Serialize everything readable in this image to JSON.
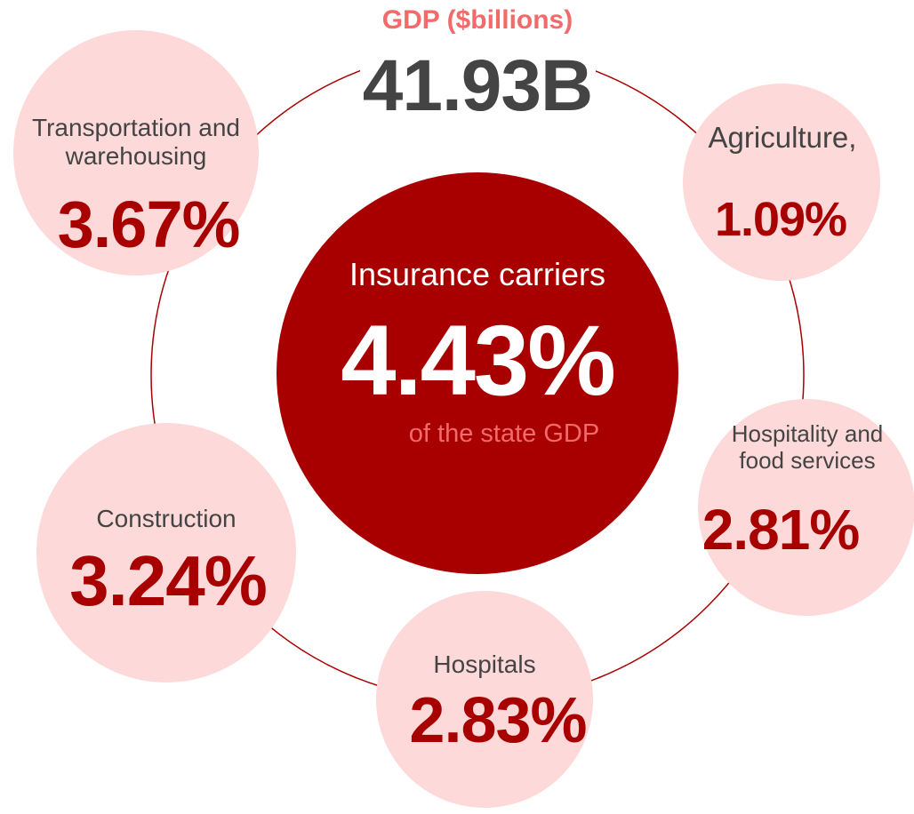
{
  "header": {
    "title": "GDP ($billions)",
    "total": "41.93B"
  },
  "center": {
    "label": "Insurance carriers",
    "value": "4.43%",
    "caption": "of the state GDP"
  },
  "nodes": [
    {
      "label": "Transportation and warehousing",
      "value": "3.67%"
    },
    {
      "label": "Agriculture,",
      "value": "1.09%"
    },
    {
      "label": "Hospitality and food services",
      "value": "2.81%"
    },
    {
      "label": "Hospitals",
      "value": "2.83%"
    },
    {
      "label": "Construction",
      "value": "3.24%"
    }
  ]
}
